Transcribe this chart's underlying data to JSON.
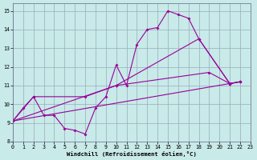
{
  "xlabel": "Windchill (Refroidissement éolien,°C)",
  "bg_color": "#c8eae8",
  "grid_color": "#99aabb",
  "line_color": "#990099",
  "xlim": [
    0,
    23
  ],
  "ylim": [
    8,
    15.4
  ],
  "xticks": [
    0,
    1,
    2,
    3,
    4,
    5,
    6,
    7,
    8,
    9,
    10,
    11,
    12,
    13,
    14,
    15,
    16,
    17,
    18,
    19,
    20,
    21,
    22,
    23
  ],
  "yticks": [
    8,
    9,
    10,
    11,
    12,
    13,
    14,
    15
  ],
  "curve1_x": [
    0,
    1,
    2,
    3,
    4,
    5,
    6,
    7,
    8,
    9,
    10,
    11,
    12,
    13,
    14,
    15,
    16,
    17,
    18,
    21,
    22
  ],
  "curve1_y": [
    9.1,
    9.8,
    10.4,
    9.4,
    9.4,
    8.7,
    8.6,
    8.4,
    9.8,
    10.4,
    12.1,
    11.0,
    13.2,
    14.0,
    14.1,
    15.0,
    14.8,
    14.6,
    13.5,
    11.1,
    11.2
  ],
  "curve2_x": [
    0,
    2,
    7,
    10,
    18,
    21,
    22
  ],
  "curve2_y": [
    9.1,
    10.4,
    10.4,
    11.0,
    13.5,
    11.1,
    11.2
  ],
  "curve3_x": [
    0,
    10,
    19,
    21,
    22
  ],
  "curve3_y": [
    9.1,
    11.0,
    11.7,
    11.1,
    11.2
  ],
  "curve4_x": [
    0,
    22
  ],
  "curve4_y": [
    9.1,
    11.2
  ]
}
